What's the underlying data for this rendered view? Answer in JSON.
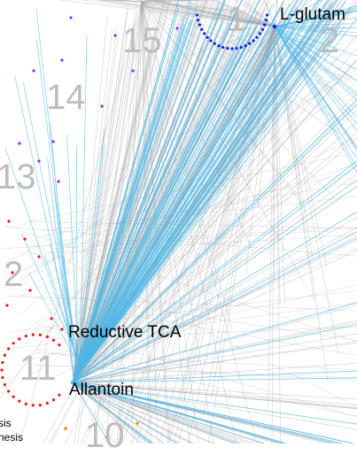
{
  "colors": {
    "background": "#ffffff",
    "gray_edge": "#a6a6a6",
    "blue_edge": "#4fb7e8",
    "sector_number": "#bdbdbd",
    "label_text": "#000000",
    "node_blue": "#1a1ae6",
    "node_purple": "#a020f0",
    "node_red": "#e61919",
    "node_orange": "#e08a1e",
    "node_gold": "#c8a000"
  },
  "sectors": [
    {
      "id": "s1",
      "label": "1"
    },
    {
      "id": "s2",
      "label": "2"
    },
    {
      "id": "s15",
      "label": "15"
    },
    {
      "id": "s14",
      "label": "14"
    },
    {
      "id": "s13",
      "label": "13"
    },
    {
      "id": "s12",
      "label": "2"
    },
    {
      "id": "s11",
      "label": "11"
    },
    {
      "id": "s10",
      "label": "10"
    }
  ],
  "labels": {
    "l_glutam": "L-glutam",
    "reductive_tca": "Reductive TCA",
    "allantoin": "Allantoin"
  },
  "legend_fragments": [
    "sis",
    "nesis"
  ]
}
